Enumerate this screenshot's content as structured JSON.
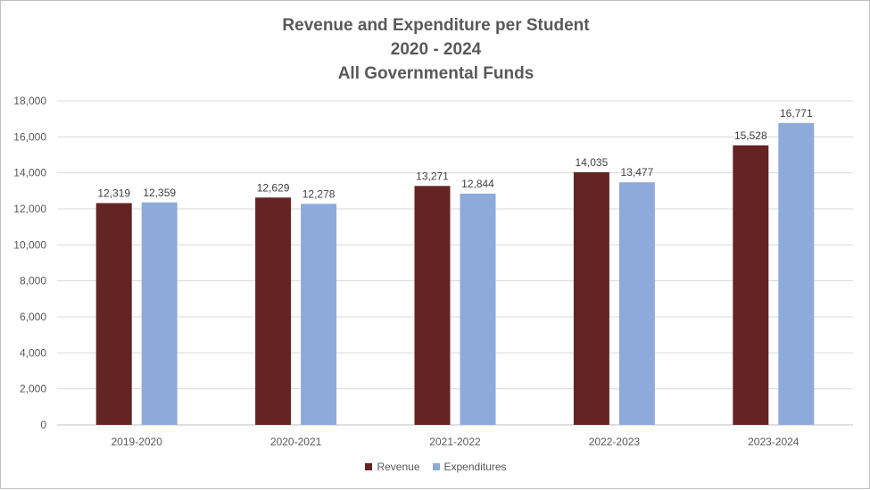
{
  "chart_data": {
    "type": "bar",
    "title_lines": [
      "Revenue and Expenditure per Student",
      "2020 - 2024",
      "All Governmental Funds"
    ],
    "categories": [
      "2019-2020",
      "2020-2021",
      "2021-2022",
      "2022-2023",
      "2023-2024"
    ],
    "series": [
      {
        "name": "Revenue",
        "color": "#632423",
        "values": [
          12319,
          12629,
          13271,
          14035,
          15528
        ],
        "labels": [
          "12,319",
          "12,629",
          "13,271",
          "14,035",
          "15,528"
        ]
      },
      {
        "name": "Expenditures",
        "color": "#8EAADB",
        "values": [
          12359,
          12278,
          12844,
          13477,
          16771
        ],
        "labels": [
          "12,359",
          "12,278",
          "12,844",
          "13,477",
          "16,771"
        ]
      }
    ],
    "ylim": [
      0,
      18000
    ],
    "yticks": [
      0,
      2000,
      4000,
      6000,
      8000,
      10000,
      12000,
      14000,
      16000,
      18000
    ],
    "ytick_labels": [
      "0",
      "2,000",
      "4,000",
      "6,000",
      "8,000",
      "10,000",
      "12,000",
      "14,000",
      "16,000",
      "18,000"
    ],
    "grid": true,
    "legend_position": "bottom",
    "xlabel": "",
    "ylabel": ""
  }
}
